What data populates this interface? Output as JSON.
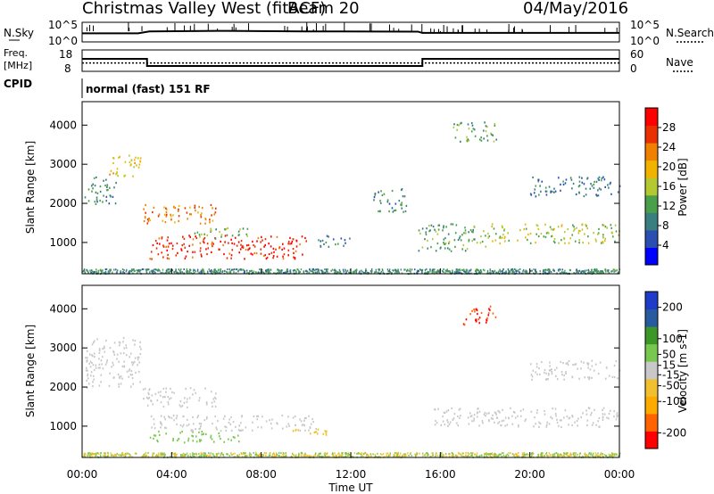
{
  "header": {
    "title": "Christmas Valley West (fitACF)",
    "beam": "Beam 20",
    "date": "04/May/2016"
  },
  "sky_panel": {
    "left_label": "N.Sky",
    "right_label": "N.Search",
    "left_ticks": [
      "10^5",
      "10^0"
    ],
    "right_ticks": [
      "10^5",
      "10^0"
    ]
  },
  "freq_panel": {
    "left_label_1": "Freq.",
    "left_label_2": "[MHz]",
    "right_label": "Nave",
    "left_ticks": [
      "18",
      "8"
    ],
    "right_ticks": [
      "60",
      "0"
    ]
  },
  "cpid": {
    "label": "CPID",
    "value": "normal (fast) 151 RF"
  },
  "time_axis": {
    "title": "Time UT",
    "ticks": [
      "00:00",
      "04:00",
      "08:00",
      "12:00",
      "16:00",
      "20:00",
      "00:00"
    ]
  },
  "colors": {
    "power": [
      "#0000ff",
      "#2a4fb0",
      "#3a7f7f",
      "#4a9f4a",
      "#b4c832",
      "#f0b400",
      "#f08000",
      "#e83000",
      "#ff0000"
    ],
    "velocity": [
      "#ff0000",
      "#ff6400",
      "#ffaa00",
      "#f0c030",
      "#c8c8c8",
      "#78c850",
      "#3c9628",
      "#285aa0",
      "#1e3cc8"
    ],
    "ground_scatter": "#c0c0c0"
  },
  "chart_data": [
    {
      "type": "line",
      "title": "N.Sky / N.Search",
      "x_unit": "hours UT",
      "xlim": [
        0,
        24
      ],
      "y_scale": "log",
      "ylim": [
        1,
        100000
      ],
      "series": [
        {
          "name": "N.Sky",
          "x": [
            0,
            2.5,
            3,
            6,
            10,
            15,
            15.2,
            24
          ],
          "y": [
            100,
            100,
            600,
            1000,
            600,
            500,
            150,
            150
          ]
        }
      ]
    },
    {
      "type": "line",
      "title": "Freq. / Nave",
      "xlim": [
        0,
        24
      ],
      "series": [
        {
          "name": "Freq.",
          "x": [
            0,
            2.9,
            2.9,
            15.2,
            15.2,
            24
          ],
          "y": [
            14,
            14,
            10,
            10,
            14,
            14
          ]
        },
        {
          "name": "Nave",
          "x": [
            0,
            24
          ],
          "y": [
            22,
            22
          ]
        }
      ],
      "ylim_left": [
        8,
        18
      ],
      "ylim_right": [
        0,
        60
      ]
    },
    {
      "type": "heatmap",
      "title": "Power",
      "xlabel": "Time UT",
      "ylabel": "Slant Range [km]",
      "xlim": [
        0,
        24
      ],
      "ylim": [
        200,
        4600
      ],
      "y_ticks": [
        1000,
        2000,
        3000,
        4000
      ],
      "colorbar": {
        "label": "Power [dB]",
        "ticks": [
          4,
          8,
          12,
          16,
          20,
          24,
          28
        ],
        "range": [
          0,
          32
        ]
      },
      "regions": [
        {
          "t0": 0.1,
          "t1": 1.5,
          "r0": 2000,
          "r1": 2700,
          "value": 10
        },
        {
          "t0": 1.2,
          "t1": 2.6,
          "r0": 2700,
          "r1": 3300,
          "value": 18
        },
        {
          "t0": 2.7,
          "t1": 6.0,
          "r0": 1500,
          "r1": 2000,
          "value": 24
        },
        {
          "t0": 3.0,
          "t1": 10.0,
          "r0": 600,
          "r1": 1200,
          "value": 28
        },
        {
          "t0": 5.0,
          "t1": 7.5,
          "r0": 1100,
          "r1": 1400,
          "value": 14
        },
        {
          "t0": 10.5,
          "t1": 12.0,
          "r0": 900,
          "r1": 1200,
          "value": 8
        },
        {
          "t0": 13.0,
          "t1": 14.5,
          "r0": 1800,
          "r1": 2400,
          "value": 10
        },
        {
          "t0": 15.0,
          "t1": 18.0,
          "r0": 800,
          "r1": 1500,
          "value": 12
        },
        {
          "t0": 18.0,
          "t1": 24.0,
          "r0": 1000,
          "r1": 1500,
          "value": 16
        },
        {
          "t0": 20.0,
          "t1": 24.0,
          "r0": 2200,
          "r1": 2700,
          "value": 8
        },
        {
          "t0": 16.5,
          "t1": 18.5,
          "r0": 3600,
          "r1": 4100,
          "value": 12
        }
      ]
    },
    {
      "type": "heatmap",
      "title": "Velocity",
      "xlabel": "Time UT",
      "ylabel": "Slant Range [km]",
      "xlim": [
        0,
        24
      ],
      "ylim": [
        200,
        4600
      ],
      "y_ticks": [
        1000,
        2000,
        3000,
        4000
      ],
      "colorbar": {
        "label": "Velocity [m s-1]",
        "ticks": [
          -200,
          -100,
          -50,
          -15,
          15,
          50,
          100,
          200
        ],
        "range": [
          -250,
          250
        ]
      },
      "regions": [
        {
          "t0": 0.1,
          "t1": 2.6,
          "r0": 2000,
          "r1": 3300,
          "value": 0
        },
        {
          "t0": 2.7,
          "t1": 6.0,
          "r0": 1500,
          "r1": 2000,
          "value": 0
        },
        {
          "t0": 3.0,
          "t1": 7.0,
          "r0": 600,
          "r1": 900,
          "value": 30
        },
        {
          "t0": 3.0,
          "t1": 10.5,
          "r0": 900,
          "r1": 1300,
          "value": 0
        },
        {
          "t0": 9.0,
          "t1": 11.0,
          "r0": 800,
          "r1": 1000,
          "value": -40
        },
        {
          "t0": 15.5,
          "t1": 24.0,
          "r0": 1000,
          "r1": 1500,
          "value": 0
        },
        {
          "t0": 20.0,
          "t1": 24.0,
          "r0": 2200,
          "r1": 2700,
          "value": 0
        },
        {
          "t0": 17.0,
          "t1": 18.5,
          "r0": 3600,
          "r1": 4100,
          "value": -200
        }
      ]
    }
  ]
}
